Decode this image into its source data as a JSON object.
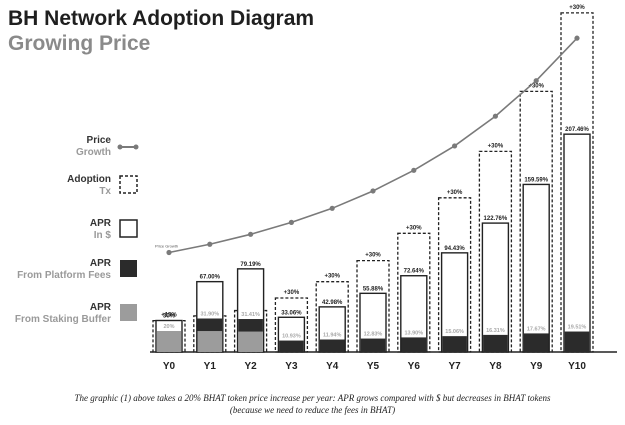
{
  "header": {
    "title": "BH Network Adoption Diagram",
    "subtitle": "Growing Price"
  },
  "legend": [
    {
      "id": "price",
      "label1": "Price",
      "label2": "Growth",
      "swatch": "line"
    },
    {
      "id": "adoption",
      "label1": "Adoption",
      "label2": "Tx",
      "swatch": "dashed"
    },
    {
      "id": "apr_usd",
      "label1": "APR",
      "label2": "In $",
      "swatch": "outline"
    },
    {
      "id": "apr_fees",
      "label1": "APR",
      "label2": "From Platform Fees",
      "swatch": "dark"
    },
    {
      "id": "apr_buffer",
      "label1": "APR",
      "label2": "From Staking Buffer",
      "swatch": "gray"
    }
  ],
  "caption": "The graphic (1) above takes a 20% BHAT token price increase per year: APR grows compared with $ but decreases in BHAT tokens (because we need to reduce the fees in BHAT)",
  "colors": {
    "dark": "#2b2b2b",
    "gray": "#9c9c9c",
    "line": "#7a7a7a",
    "label_gray": "#a8a8a8"
  },
  "chart_data": {
    "type": "bar",
    "categories": [
      "Y0",
      "Y1",
      "Y2",
      "Y3",
      "Y4",
      "Y5",
      "Y6",
      "Y7",
      "Y8",
      "Y9",
      "Y10"
    ],
    "adoption_labels": [
      "+15%",
      "+15%",
      "+15%",
      "+30%",
      "+30%",
      "+30%",
      "+30%",
      "+30%",
      "+30%",
      "+30%",
      "+30%"
    ],
    "adoption_values": [
      100,
      115,
      132,
      172,
      224,
      291,
      378,
      491,
      639,
      830,
      1080
    ],
    "apr_usd_values": [
      30,
      67.0,
      79.19,
      33.06,
      42.98,
      55.88,
      72.64,
      94.43,
      122.76,
      159.59,
      207.46
    ],
    "apr_usd_labels": [
      "30%",
      "67.00%",
      "79.19%",
      "33.06%",
      "42.98%",
      "55.88%",
      "72.64%",
      "94.43%",
      "122.76%",
      "159.59%",
      "207.46%"
    ],
    "apr_bhat_labels": [
      "20%",
      "31.90%",
      "31.41%",
      "10.93%",
      "11.94%",
      "12.83%",
      "13.90%",
      "15.06%",
      "16.31%",
      "17.67%",
      "19.51%"
    ],
    "apr_fees_values": [
      0,
      12,
      12,
      10.9,
      11.9,
      12.8,
      13.9,
      15.1,
      16.3,
      17.7,
      19.5
    ],
    "apr_buffer_values": [
      20,
      19.9,
      19.4,
      0,
      0,
      0,
      0,
      0,
      0,
      0,
      0
    ],
    "price_growth_values": [
      1.0,
      1.2,
      1.44,
      1.73,
      2.07,
      2.49,
      2.99,
      3.58,
      4.3,
      5.16,
      6.19
    ],
    "price_growth_label": "Price Growth"
  }
}
